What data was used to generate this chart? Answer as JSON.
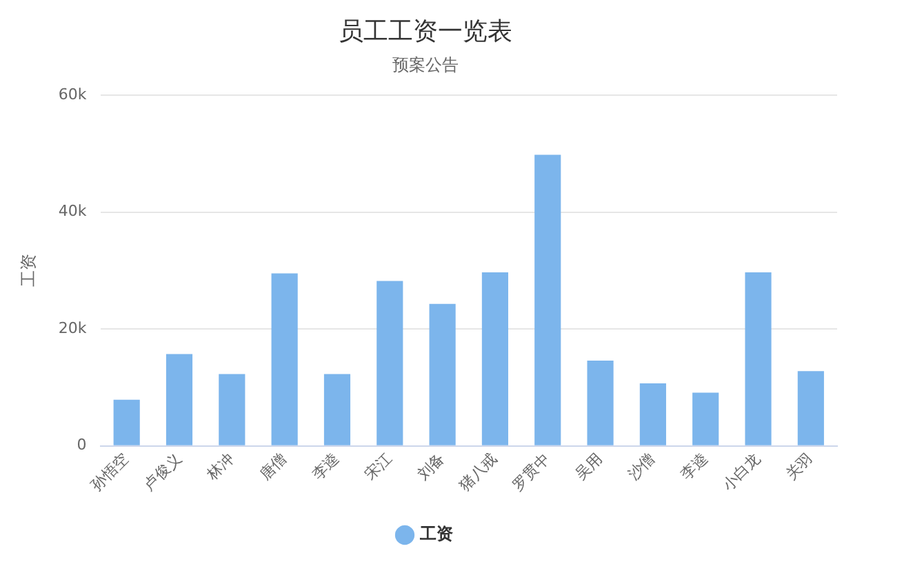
{
  "chart_data": {
    "type": "bar",
    "title": "员工工资一览表",
    "subtitle": "预案公告",
    "ylabel": "工资",
    "categories": [
      "孙悟空",
      "卢俊义",
      "林冲",
      "唐僧",
      "李逵",
      "宋江",
      "刘备",
      "猪八戒",
      "罗贯中",
      "吴用",
      "沙僧",
      "李逵",
      "小白龙",
      "关羽"
    ],
    "series": [
      {
        "name": "工资",
        "color": "#7cb5ec",
        "values": [
          7900,
          15700,
          12300,
          29500,
          12300,
          28200,
          24300,
          29700,
          49800,
          14600,
          10700,
          9100,
          29700,
          12800
        ]
      }
    ],
    "ylim": [
      0,
      60000
    ],
    "yticks": [
      {
        "value": 0,
        "label": "0"
      },
      {
        "value": 20000,
        "label": "20k"
      },
      {
        "value": 40000,
        "label": "40k"
      },
      {
        "value": 60000,
        "label": "60k"
      }
    ],
    "grid": "y",
    "legend": "bottom"
  }
}
